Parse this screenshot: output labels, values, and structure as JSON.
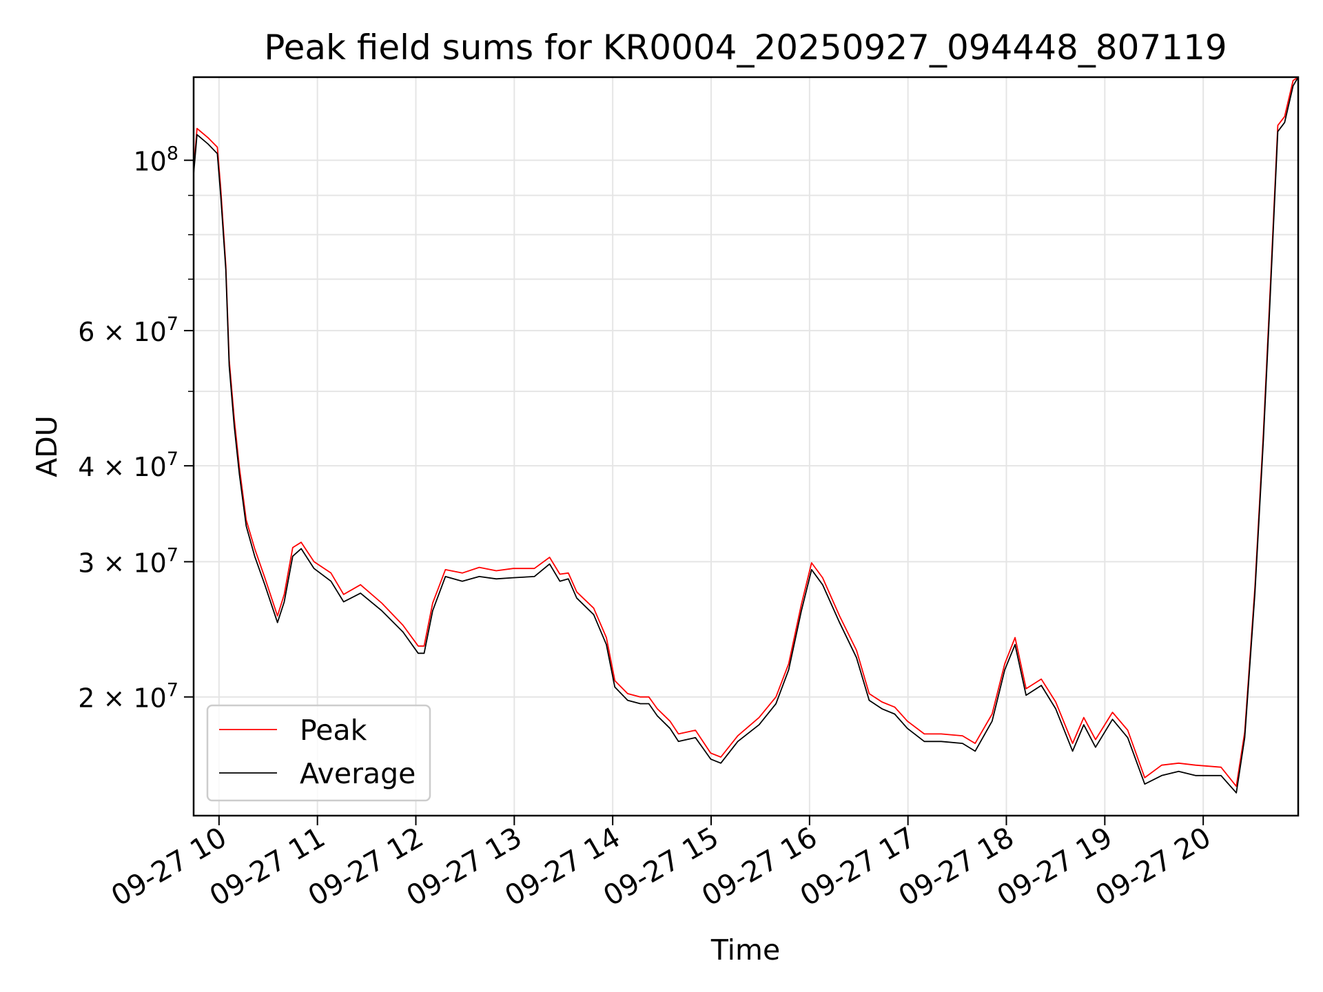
{
  "chart_data": {
    "type": "line",
    "title": "Peak field sums for KR0004_20250927_094448_807119",
    "xlabel": "Time",
    "ylabel": "ADU",
    "yscale": "log",
    "xlim_hours": [
      9.742,
      20.965
    ],
    "ylim": [
      14010000,
      128300000
    ],
    "grid": true,
    "legend_placement": "lower-left",
    "xticks": [
      {
        "hour": 10,
        "label": "09-27 10"
      },
      {
        "hour": 11,
        "label": "09-27 11"
      },
      {
        "hour": 12,
        "label": "09-27 12"
      },
      {
        "hour": 13,
        "label": "09-27 13"
      },
      {
        "hour": 14,
        "label": "09-27 14"
      },
      {
        "hour": 15,
        "label": "09-27 15"
      },
      {
        "hour": 16,
        "label": "09-27 16"
      },
      {
        "hour": 17,
        "label": "09-27 17"
      },
      {
        "hour": 18,
        "label": "09-27 18"
      },
      {
        "hour": 19,
        "label": "09-27 19"
      },
      {
        "hour": 20,
        "label": "09-27 20"
      }
    ],
    "yticks": [
      {
        "value": 100000000,
        "base": "10",
        "exp": "8"
      },
      {
        "value": 60000000,
        "base": "6 × 10",
        "exp": "7"
      },
      {
        "value": 40000000,
        "base": "4 × 10",
        "exp": "7"
      },
      {
        "value": 30000000,
        "base": "3 × 10",
        "exp": "7"
      },
      {
        "value": 20000000,
        "base": "2 × 10",
        "exp": "7"
      }
    ],
    "yminor": [
      90000000,
      80000000,
      70000000,
      50000000
    ],
    "x_hours": [
      9.742,
      9.776,
      9.888,
      9.983,
      10.017,
      10.069,
      10.103,
      10.155,
      10.207,
      10.276,
      10.362,
      10.465,
      10.594,
      10.663,
      10.749,
      10.835,
      10.965,
      11.137,
      11.266,
      11.438,
      11.654,
      11.869,
      12.024,
      12.084,
      12.171,
      12.3,
      12.472,
      12.644,
      12.817,
      12.989,
      13.204,
      13.359,
      13.463,
      13.549,
      13.635,
      13.807,
      13.936,
      14.022,
      14.152,
      14.281,
      14.367,
      14.453,
      14.582,
      14.668,
      14.841,
      14.996,
      15.099,
      15.271,
      15.487,
      15.659,
      15.788,
      15.917,
      16.021,
      16.133,
      16.305,
      16.477,
      16.606,
      16.736,
      16.865,
      16.994,
      17.166,
      17.338,
      17.554,
      17.683,
      17.855,
      17.984,
      18.088,
      18.2,
      18.355,
      18.501,
      18.673,
      18.786,
      18.906,
      19.078,
      19.233,
      19.406,
      19.578,
      19.75,
      19.922,
      20.181,
      20.336,
      20.422,
      20.525,
      20.611,
      20.672,
      20.758,
      20.827,
      20.913,
      20.965
    ],
    "series": [
      {
        "name": "Peak",
        "color": "#ff0000",
        "values": [
          97000000,
          110000000,
          107000000,
          104000000,
          92000000,
          73000000,
          55000000,
          46000000,
          39800000,
          34000000,
          31200000,
          28600000,
          25500000,
          27200000,
          31300000,
          31800000,
          30000000,
          29000000,
          27200000,
          28000000,
          26500000,
          24800000,
          23300000,
          23300000,
          26500000,
          29300000,
          29000000,
          29500000,
          29200000,
          29400000,
          29400000,
          30400000,
          28900000,
          29000000,
          27400000,
          26100000,
          23900000,
          21000000,
          20200000,
          20000000,
          20000000,
          19300000,
          18600000,
          17900000,
          18100000,
          16900000,
          16700000,
          17800000,
          18800000,
          20000000,
          22100000,
          26400000,
          29900000,
          28600000,
          25500000,
          23000000,
          20200000,
          19700000,
          19400000,
          18600000,
          17900000,
          17900000,
          17800000,
          17400000,
          19000000,
          22100000,
          23900000,
          20500000,
          21100000,
          19700000,
          17400000,
          18800000,
          17600000,
          19100000,
          18100000,
          15700000,
          16300000,
          16400000,
          16300000,
          16200000,
          15300000,
          18000000,
          27800000,
          44000000,
          64500000,
          111000000,
          114000000,
          127000000,
          128300000
        ]
      },
      {
        "name": "Average",
        "color": "#000000",
        "values": [
          96000000,
          108000000,
          105000000,
          102000000,
          90000000,
          72000000,
          54000000,
          45000000,
          39000000,
          33400000,
          30500000,
          28000000,
          25000000,
          26600000,
          30500000,
          31200000,
          29400000,
          28300000,
          26600000,
          27300000,
          25900000,
          24300000,
          22800000,
          22800000,
          25900000,
          28700000,
          28300000,
          28700000,
          28500000,
          28600000,
          28700000,
          29800000,
          28300000,
          28500000,
          26900000,
          25600000,
          23400000,
          20600000,
          19800000,
          19600000,
          19600000,
          18900000,
          18200000,
          17500000,
          17700000,
          16600000,
          16400000,
          17500000,
          18400000,
          19600000,
          21700000,
          25900000,
          29300000,
          28000000,
          25000000,
          22500000,
          19800000,
          19300000,
          19000000,
          18200000,
          17500000,
          17500000,
          17400000,
          17000000,
          18600000,
          21700000,
          23400000,
          20100000,
          20700000,
          19300000,
          17000000,
          18400000,
          17200000,
          18700000,
          17700000,
          15400000,
          15800000,
          16000000,
          15800000,
          15800000,
          15000000,
          17700000,
          27300000,
          43100000,
          63000000,
          109000000,
          112000000,
          125000000,
          128300000
        ]
      }
    ]
  }
}
